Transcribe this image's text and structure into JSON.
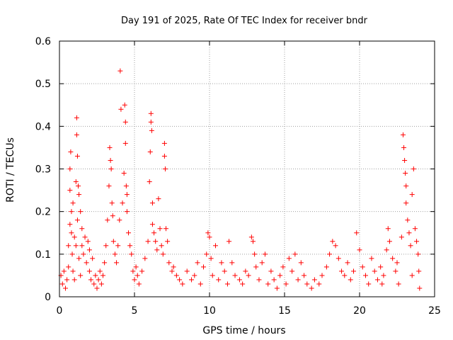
{
  "chart_data": {
    "type": "scatter",
    "title": "Day 191 of 2025, Rate Of TEC Index for receiver bndr",
    "xlabel": "GPS time / hours",
    "ylabel": "ROTI / TECUs",
    "xlim": [
      0,
      25
    ],
    "ylim": [
      0,
      0.6
    ],
    "xticks": [
      0,
      5,
      10,
      15,
      20,
      25
    ],
    "yticks": [
      0,
      0.1,
      0.2,
      0.3,
      0.4,
      0.5,
      0.6
    ],
    "xtick_labels": [
      "0",
      "5",
      "10",
      "15",
      "20",
      "25"
    ],
    "ytick_labels": [
      "0",
      "0.1",
      "0.2",
      "0.3",
      "0.4",
      "0.5",
      "0.6"
    ],
    "grid": true,
    "marker": "+",
    "color": "#ff0000",
    "series": [
      {
        "name": "ROTI",
        "points": [
          [
            0.1,
            0.05
          ],
          [
            0.2,
            0.03
          ],
          [
            0.3,
            0.06
          ],
          [
            0.4,
            0.02
          ],
          [
            0.5,
            0.04
          ],
          [
            0.6,
            0.12
          ],
          [
            0.6,
            0.07
          ],
          [
            0.7,
            0.17
          ],
          [
            0.7,
            0.25
          ],
          [
            0.7,
            0.3
          ],
          [
            0.75,
            0.34
          ],
          [
            0.8,
            0.2
          ],
          [
            0.8,
            0.15
          ],
          [
            0.85,
            0.1
          ],
          [
            0.9,
            0.22
          ],
          [
            0.9,
            0.06
          ],
          [
            1.0,
            0.04
          ],
          [
            1.0,
            0.14
          ],
          [
            1.1,
            0.27
          ],
          [
            1.1,
            0.12
          ],
          [
            1.15,
            0.42
          ],
          [
            1.15,
            0.38
          ],
          [
            1.2,
            0.33
          ],
          [
            1.2,
            0.18
          ],
          [
            1.25,
            0.26
          ],
          [
            1.3,
            0.24
          ],
          [
            1.3,
            0.09
          ],
          [
            1.4,
            0.2
          ],
          [
            1.4,
            0.05
          ],
          [
            1.5,
            0.16
          ],
          [
            1.5,
            0.12
          ],
          [
            1.6,
            0.1
          ],
          [
            1.7,
            0.14
          ],
          [
            1.8,
            0.08
          ],
          [
            1.9,
            0.13
          ],
          [
            2.0,
            0.06
          ],
          [
            2.0,
            0.11
          ],
          [
            2.1,
            0.04
          ],
          [
            2.2,
            0.09
          ],
          [
            2.3,
            0.03
          ],
          [
            2.4,
            0.05
          ],
          [
            2.5,
            0.02
          ],
          [
            2.6,
            0.04
          ],
          [
            2.7,
            0.06
          ],
          [
            2.8,
            0.03
          ],
          [
            2.9,
            0.05
          ],
          [
            3.0,
            0.08
          ],
          [
            3.1,
            0.12
          ],
          [
            3.2,
            0.18
          ],
          [
            3.3,
            0.26
          ],
          [
            3.35,
            0.35
          ],
          [
            3.4,
            0.32
          ],
          [
            3.45,
            0.3
          ],
          [
            3.5,
            0.22
          ],
          [
            3.55,
            0.19
          ],
          [
            3.6,
            0.13
          ],
          [
            3.7,
            0.1
          ],
          [
            3.8,
            0.08
          ],
          [
            3.9,
            0.12
          ],
          [
            4.0,
            0.18
          ],
          [
            4.05,
            0.53
          ],
          [
            4.1,
            0.44
          ],
          [
            4.2,
            0.22
          ],
          [
            4.3,
            0.29
          ],
          [
            4.35,
            0.45
          ],
          [
            4.4,
            0.41
          ],
          [
            4.4,
            0.36
          ],
          [
            4.45,
            0.26
          ],
          [
            4.5,
            0.24
          ],
          [
            4.5,
            0.2
          ],
          [
            4.6,
            0.15
          ],
          [
            4.7,
            0.12
          ],
          [
            4.8,
            0.1
          ],
          [
            4.9,
            0.06
          ],
          [
            5.0,
            0.04
          ],
          [
            5.1,
            0.07
          ],
          [
            5.2,
            0.05
          ],
          [
            5.3,
            0.03
          ],
          [
            5.5,
            0.06
          ],
          [
            5.7,
            0.09
          ],
          [
            5.9,
            0.13
          ],
          [
            6.0,
            0.27
          ],
          [
            6.05,
            0.34
          ],
          [
            6.1,
            0.43
          ],
          [
            6.1,
            0.41
          ],
          [
            6.15,
            0.39
          ],
          [
            6.2,
            0.22
          ],
          [
            6.2,
            0.17
          ],
          [
            6.3,
            0.15
          ],
          [
            6.4,
            0.13
          ],
          [
            6.5,
            0.11
          ],
          [
            6.6,
            0.23
          ],
          [
            6.7,
            0.16
          ],
          [
            6.8,
            0.12
          ],
          [
            6.9,
            0.1
          ],
          [
            7.0,
            0.36
          ],
          [
            7.0,
            0.33
          ],
          [
            7.05,
            0.3
          ],
          [
            7.1,
            0.16
          ],
          [
            7.2,
            0.13
          ],
          [
            7.3,
            0.08
          ],
          [
            7.5,
            0.06
          ],
          [
            7.6,
            0.07
          ],
          [
            7.8,
            0.05
          ],
          [
            8.0,
            0.04
          ],
          [
            8.2,
            0.03
          ],
          [
            8.5,
            0.06
          ],
          [
            8.8,
            0.04
          ],
          [
            9.0,
            0.05
          ],
          [
            9.2,
            0.08
          ],
          [
            9.4,
            0.03
          ],
          [
            9.6,
            0.07
          ],
          [
            9.8,
            0.1
          ],
          [
            9.9,
            0.15
          ],
          [
            10.0,
            0.14
          ],
          [
            10.1,
            0.09
          ],
          [
            10.2,
            0.05
          ],
          [
            10.4,
            0.12
          ],
          [
            10.6,
            0.04
          ],
          [
            10.8,
            0.08
          ],
          [
            11.0,
            0.06
          ],
          [
            11.2,
            0.03
          ],
          [
            11.3,
            0.13
          ],
          [
            11.5,
            0.08
          ],
          [
            11.7,
            0.05
          ],
          [
            12.0,
            0.04
          ],
          [
            12.2,
            0.03
          ],
          [
            12.4,
            0.06
          ],
          [
            12.6,
            0.05
          ],
          [
            12.8,
            0.14
          ],
          [
            12.9,
            0.13
          ],
          [
            13.0,
            0.1
          ],
          [
            13.1,
            0.07
          ],
          [
            13.3,
            0.04
          ],
          [
            13.5,
            0.08
          ],
          [
            13.7,
            0.1
          ],
          [
            13.9,
            0.03
          ],
          [
            14.1,
            0.06
          ],
          [
            14.3,
            0.04
          ],
          [
            14.5,
            0.02
          ],
          [
            14.7,
            0.05
          ],
          [
            14.9,
            0.07
          ],
          [
            15.1,
            0.03
          ],
          [
            15.3,
            0.09
          ],
          [
            15.5,
            0.06
          ],
          [
            15.7,
            0.1
          ],
          [
            15.9,
            0.04
          ],
          [
            16.1,
            0.08
          ],
          [
            16.3,
            0.05
          ],
          [
            16.5,
            0.03
          ],
          [
            16.8,
            0.02
          ],
          [
            17.0,
            0.04
          ],
          [
            17.3,
            0.03
          ],
          [
            17.5,
            0.05
          ],
          [
            17.8,
            0.07
          ],
          [
            18.0,
            0.1
          ],
          [
            18.2,
            0.13
          ],
          [
            18.4,
            0.12
          ],
          [
            18.6,
            0.09
          ],
          [
            18.8,
            0.06
          ],
          [
            19.0,
            0.05
          ],
          [
            19.2,
            0.08
          ],
          [
            19.4,
            0.04
          ],
          [
            19.6,
            0.06
          ],
          [
            19.8,
            0.15
          ],
          [
            20.0,
            0.11
          ],
          [
            20.2,
            0.07
          ],
          [
            20.4,
            0.05
          ],
          [
            20.6,
            0.03
          ],
          [
            20.8,
            0.09
          ],
          [
            21.0,
            0.06
          ],
          [
            21.2,
            0.04
          ],
          [
            21.4,
            0.07
          ],
          [
            21.6,
            0.05
          ],
          [
            21.8,
            0.11
          ],
          [
            21.9,
            0.16
          ],
          [
            22.0,
            0.13
          ],
          [
            22.2,
            0.09
          ],
          [
            22.4,
            0.06
          ],
          [
            22.6,
            0.03
          ],
          [
            22.8,
            0.14
          ],
          [
            22.9,
            0.38
          ],
          [
            22.95,
            0.35
          ],
          [
            23.0,
            0.32
          ],
          [
            23.05,
            0.29
          ],
          [
            23.1,
            0.26
          ],
          [
            23.1,
            0.22
          ],
          [
            23.2,
            0.18
          ],
          [
            23.3,
            0.15
          ],
          [
            23.4,
            0.12
          ],
          [
            23.5,
            0.24
          ],
          [
            23.6,
            0.3
          ],
          [
            23.7,
            0.16
          ],
          [
            23.8,
            0.13
          ],
          [
            23.9,
            0.1
          ],
          [
            24.0,
            0.02
          ],
          [
            23.95,
            0.06
          ],
          [
            23.5,
            0.05
          ],
          [
            22.5,
            0.08
          ],
          [
            21.5,
            0.03
          ]
        ]
      }
    ]
  }
}
